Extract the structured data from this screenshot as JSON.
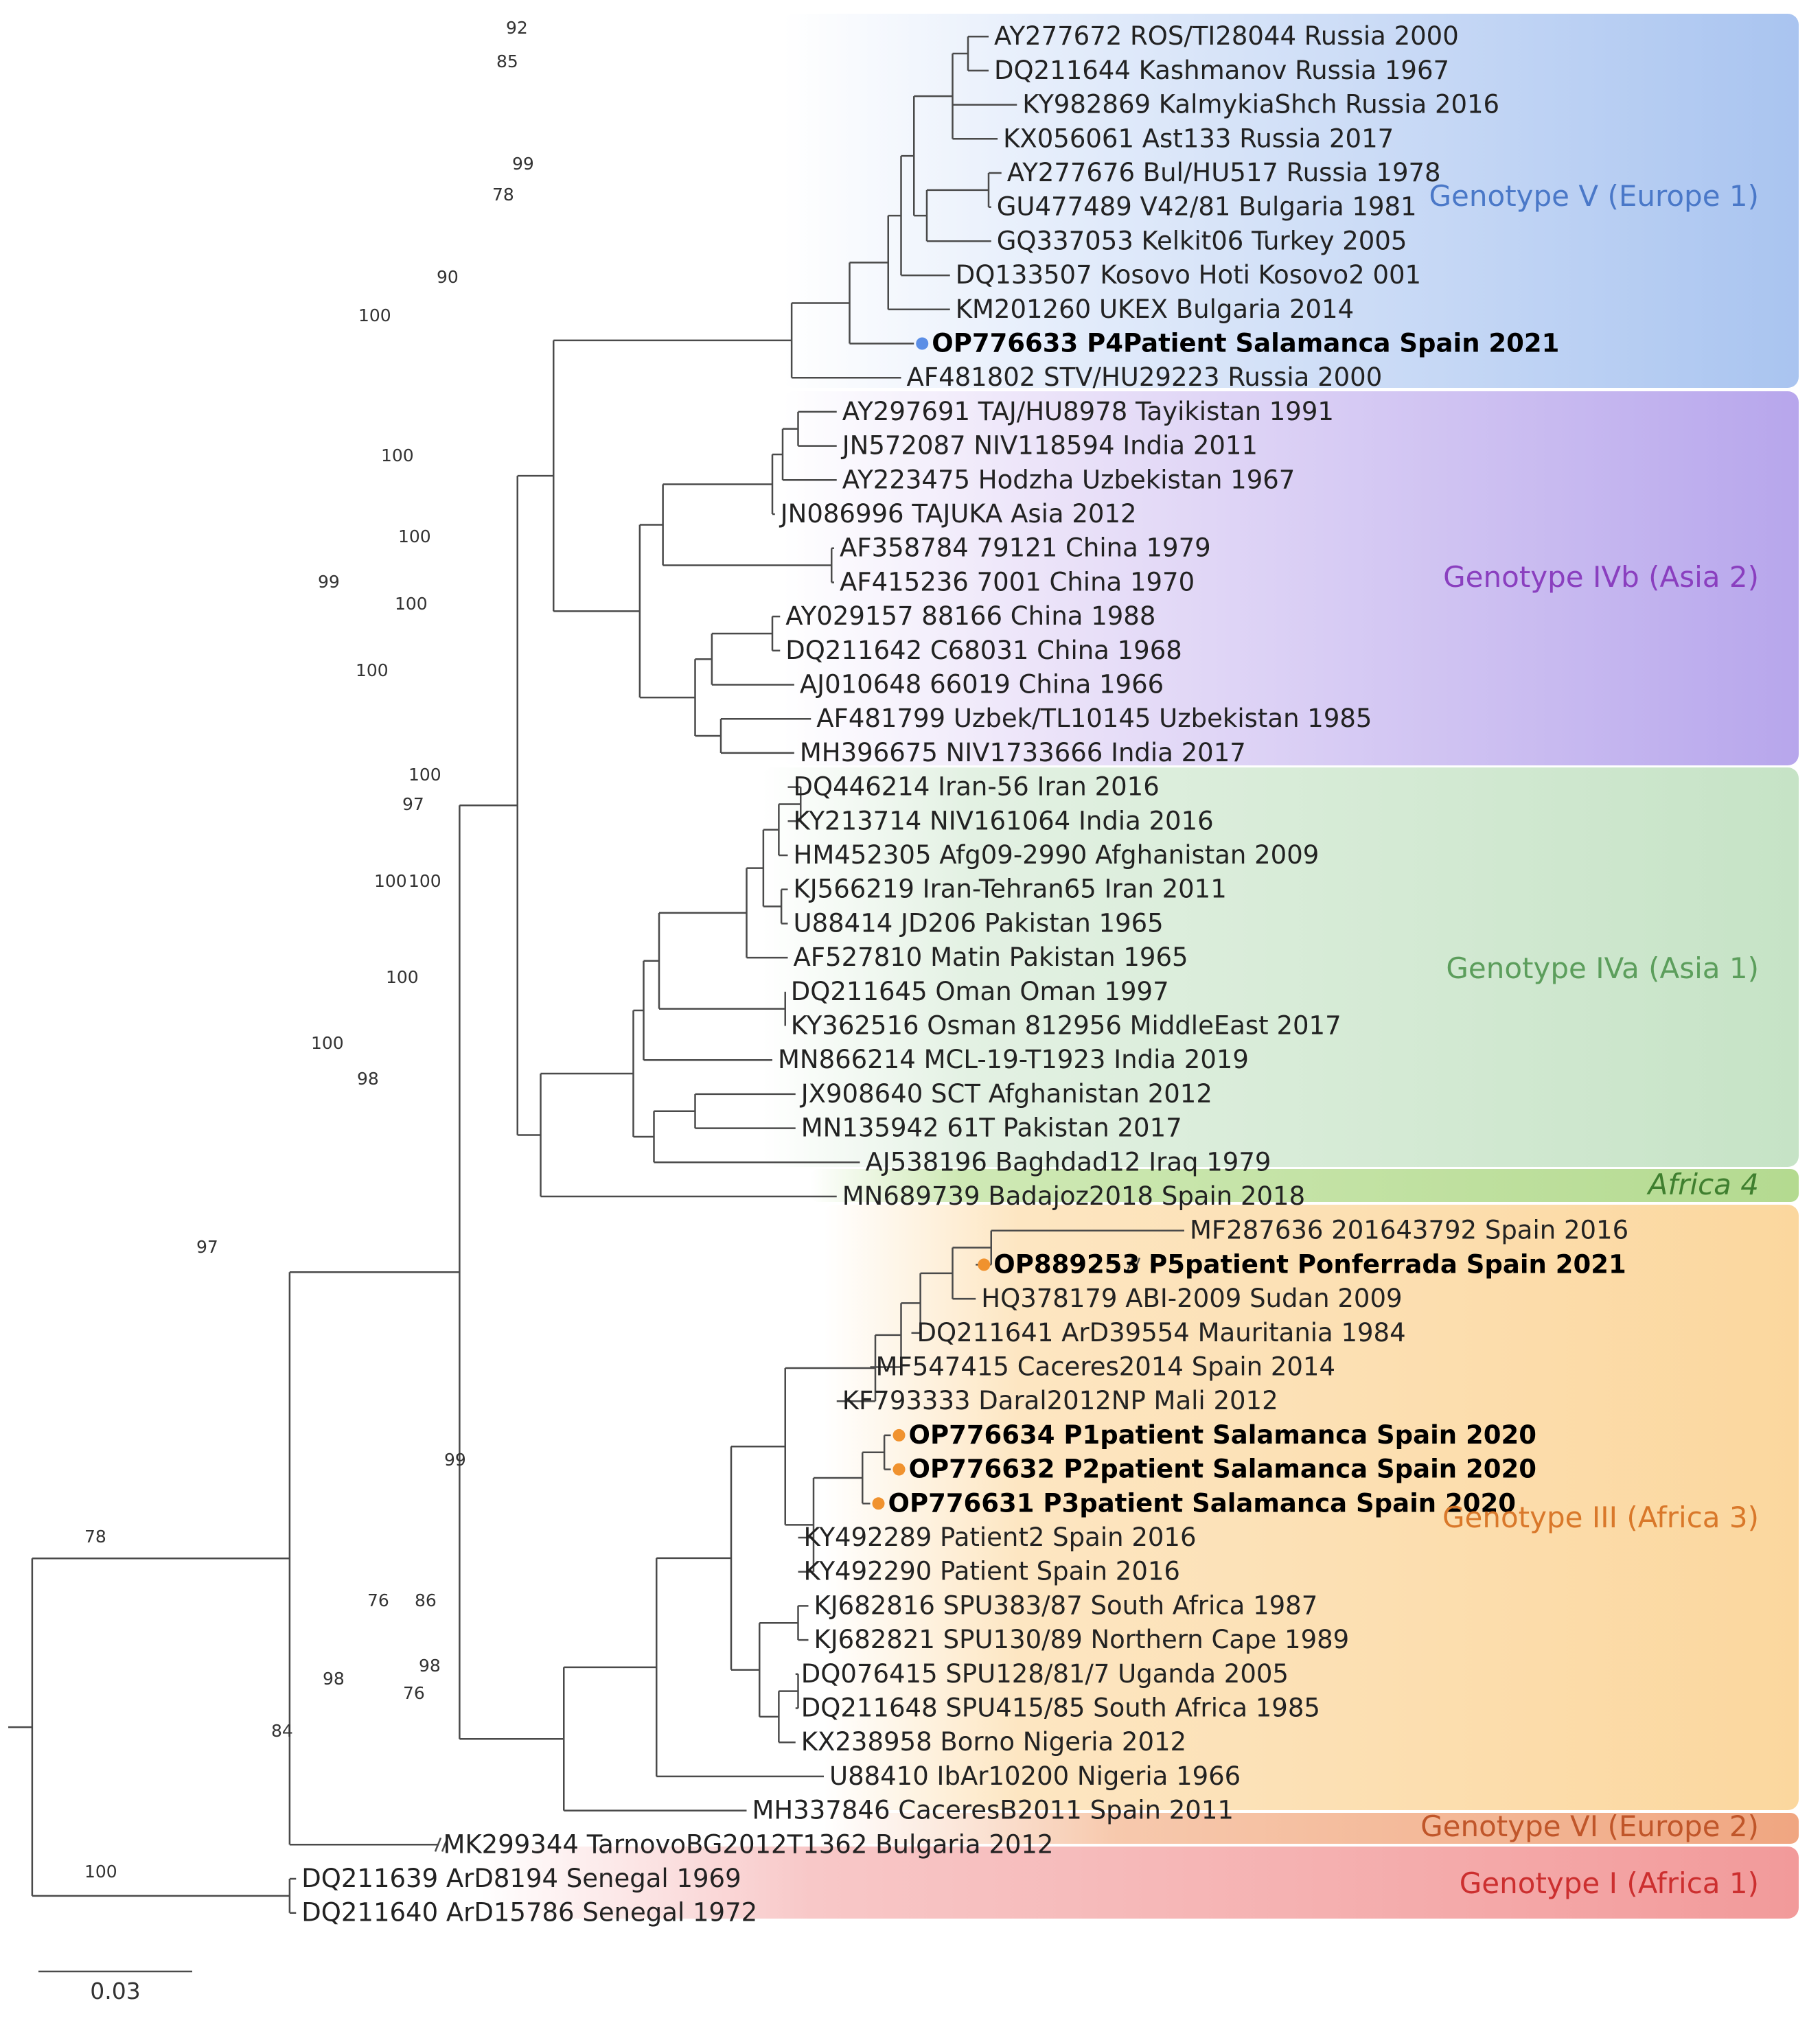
{
  "figure": {
    "scale_bar_label": "0.03",
    "clades": [
      {
        "label": "Genotype V (Europe 1)",
        "color": "#4a78c8"
      },
      {
        "label": "Genotype IVb (Asia 2)",
        "color": "#8a3fbf"
      },
      {
        "label": "Genotype IVa (Asia 1)",
        "color": "#5c9e5c"
      },
      {
        "label": "Africa 4",
        "color": "#3f7f2f"
      },
      {
        "label": "Genotype III (Africa 3)",
        "color": "#d9782a"
      },
      {
        "label": "Genotype VI (Europe 2)",
        "color": "#c0562a"
      },
      {
        "label": "Genotype I (Africa 1)",
        "color": "#cc2f2f"
      }
    ],
    "leaves": [
      {
        "label": "AY277672 ROS/TI28044 Russia 2000"
      },
      {
        "label": "DQ211644 Kashmanov Russia 1967"
      },
      {
        "label": "KY982869 KalmykiaShch Russia 2016"
      },
      {
        "label": "KX056061 Ast133 Russia 2017"
      },
      {
        "label": "AY277676 Bul/HU517 Russia 1978"
      },
      {
        "label": "GU477489 V42/81 Bulgaria 1981"
      },
      {
        "label": "GQ337053 Kelkit06 Turkey 2005"
      },
      {
        "label": "DQ133507 Kosovo Hoti Kosovo2 001"
      },
      {
        "label": "KM201260 UKEX Bulgaria 2014"
      },
      {
        "label": "OP776633 P4Patient Salamanca Spain 2021",
        "bold": true,
        "dot": "#5b8ee6"
      },
      {
        "label": "AF481802 STV/HU29223 Russia 2000"
      },
      {
        "label": "AY297691 TAJ/HU8978 Tayikistan 1991"
      },
      {
        "label": "JN572087 NIV118594 India 2011"
      },
      {
        "label": "AY223475 Hodzha Uzbekistan 1967"
      },
      {
        "label": "JN086996 TAJUKA Asia 2012"
      },
      {
        "label": "AF358784 79121 China 1979"
      },
      {
        "label": "AF415236 7001 China 1970"
      },
      {
        "label": "AY029157 88166 China 1988"
      },
      {
        "label": "DQ211642 C68031 China 1968"
      },
      {
        "label": "AJ010648 66019 China 1966"
      },
      {
        "label": "AF481799 Uzbek/TL10145 Uzbekistan 1985"
      },
      {
        "label": "MH396675 NIV1733666 India 2017"
      },
      {
        "label": "DQ446214 Iran-56 Iran 2016"
      },
      {
        "label": "KY213714 NIV161064 India 2016"
      },
      {
        "label": "HM452305 Afg09-2990 Afghanistan 2009"
      },
      {
        "label": "KJ566219 Iran-Tehran65 Iran 2011"
      },
      {
        "label": "U88414 JD206 Pakistan 1965"
      },
      {
        "label": "AF527810 Matin Pakistan 1965"
      },
      {
        "label": "DQ211645 Oman Oman 1997"
      },
      {
        "label": "KY362516 Osman 812956 MiddleEast 2017"
      },
      {
        "label": "MN866214 MCL-19-T1923 India 2019"
      },
      {
        "label": "JX908640 SCT Afghanistan 2012"
      },
      {
        "label": "MN135942 61T Pakistan 2017"
      },
      {
        "label": "AJ538196 Baghdad12 Iraq 1979"
      },
      {
        "label": "MN689739 Badajoz2018 Spain 2018"
      },
      {
        "label": "MF287636 201643792 Spain 2016"
      },
      {
        "label": "OP889253 P5patient Ponferrada Spain 2021",
        "bold": true,
        "dot": "#f0922e"
      },
      {
        "label": "HQ378179 ABI-2009 Sudan 2009"
      },
      {
        "label": "DQ211641 ArD39554 Mauritania 1984"
      },
      {
        "label": "MF547415 Caceres2014 Spain 2014"
      },
      {
        "label": "KF793333 Daral2012NP Mali 2012"
      },
      {
        "label": "OP776634 P1patient Salamanca Spain 2020",
        "bold": true,
        "dot": "#f0922e"
      },
      {
        "label": "OP776632 P2patient Salamanca Spain 2020",
        "bold": true,
        "dot": "#f0922e"
      },
      {
        "label": "OP776631 P3patient Salamanca Spain 2020",
        "bold": true,
        "dot": "#f0922e"
      },
      {
        "label": "KY492289 Patient2 Spain 2016"
      },
      {
        "label": "KY492290 Patient Spain 2016"
      },
      {
        "label": "KJ682816 SPU383/87 South Africa 1987"
      },
      {
        "label": "KJ682821 SPU130/89 Northern Cape 1989"
      },
      {
        "label": "DQ076415 SPU128/81/7 Uganda 2005"
      },
      {
        "label": "DQ211648 SPU415/85 South Africa 1985"
      },
      {
        "label": "KX238958 Borno Nigeria 2012"
      },
      {
        "label": "U88410 IbAr10200 Nigeria 1966"
      },
      {
        "label": "MH337846 CaceresB2011 Spain 2011"
      },
      {
        "label": "MK299344 TarnovoBG2012T1362 Bulgaria 2012"
      },
      {
        "label": "DQ211639 ArD8194 Senegal 1969"
      },
      {
        "label": "DQ211640 ArD15786 Senegal 1972"
      }
    ],
    "support_values": [
      "92",
      "85",
      "99",
      "78",
      "90",
      "100",
      "100",
      "100",
      "99",
      "100",
      "100",
      "100",
      "97",
      "100",
      "100",
      "100",
      "98",
      "97",
      "99",
      "76",
      "86",
      "98",
      "76",
      "98",
      "84",
      "78",
      "100",
      "100"
    ]
  }
}
